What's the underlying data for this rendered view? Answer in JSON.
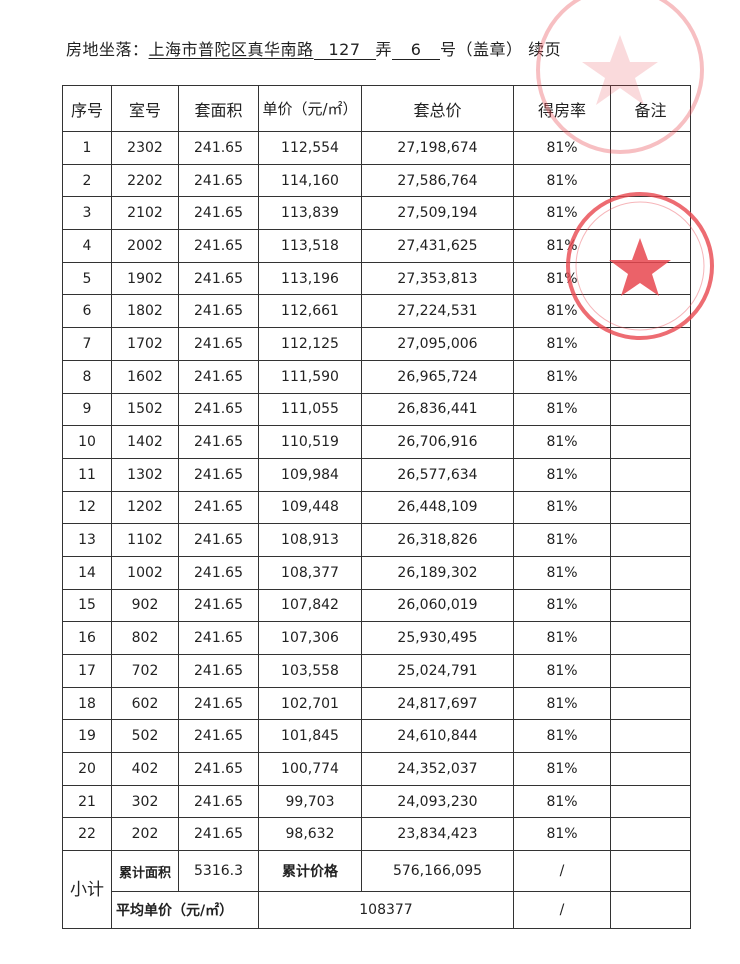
{
  "header": {
    "label": "房地坐落：",
    "address": "上海市普陀区真华南路",
    "lane_no": "127",
    "lane_label": "弄",
    "building_no": "6",
    "building_label": "号（盖章）",
    "continuation": "续页"
  },
  "columns": [
    "序号",
    "室号",
    "套面积",
    "单价（元/㎡）",
    "套总价",
    "得房率",
    "备注"
  ],
  "rows": [
    [
      "1",
      "2302",
      "241.65",
      "112,554",
      "27,198,674",
      "81%",
      ""
    ],
    [
      "2",
      "2202",
      "241.65",
      "114,160",
      "27,586,764",
      "81%",
      ""
    ],
    [
      "3",
      "2102",
      "241.65",
      "113,839",
      "27,509,194",
      "81%",
      ""
    ],
    [
      "4",
      "2002",
      "241.65",
      "113,518",
      "27,431,625",
      "81%",
      ""
    ],
    [
      "5",
      "1902",
      "241.65",
      "113,196",
      "27,353,813",
      "81%",
      ""
    ],
    [
      "6",
      "1802",
      "241.65",
      "112,661",
      "27,224,531",
      "81%",
      ""
    ],
    [
      "7",
      "1702",
      "241.65",
      "112,125",
      "27,095,006",
      "81%",
      ""
    ],
    [
      "8",
      "1602",
      "241.65",
      "111,590",
      "26,965,724",
      "81%",
      ""
    ],
    [
      "9",
      "1502",
      "241.65",
      "111,055",
      "26,836,441",
      "81%",
      ""
    ],
    [
      "10",
      "1402",
      "241.65",
      "110,519",
      "26,706,916",
      "81%",
      ""
    ],
    [
      "11",
      "1302",
      "241.65",
      "109,984",
      "26,577,634",
      "81%",
      ""
    ],
    [
      "12",
      "1202",
      "241.65",
      "109,448",
      "26,448,109",
      "81%",
      ""
    ],
    [
      "13",
      "1102",
      "241.65",
      "108,913",
      "26,318,826",
      "81%",
      ""
    ],
    [
      "14",
      "1002",
      "241.65",
      "108,377",
      "26,189,302",
      "81%",
      ""
    ],
    [
      "15",
      "902",
      "241.65",
      "107,842",
      "26,060,019",
      "81%",
      ""
    ],
    [
      "16",
      "802",
      "241.65",
      "107,306",
      "25,930,495",
      "81%",
      ""
    ],
    [
      "17",
      "702",
      "241.65",
      "103,558",
      "25,024,791",
      "81%",
      ""
    ],
    [
      "18",
      "602",
      "241.65",
      "102,701",
      "24,817,697",
      "81%",
      ""
    ],
    [
      "19",
      "502",
      "241.65",
      "101,845",
      "24,610,844",
      "81%",
      ""
    ],
    [
      "20",
      "402",
      "241.65",
      "100,774",
      "24,352,037",
      "81%",
      ""
    ],
    [
      "21",
      "302",
      "241.65",
      "99,703",
      "24,093,230",
      "81%",
      ""
    ],
    [
      "22",
      "202",
      "241.65",
      "98,632",
      "23,834,423",
      "81%",
      ""
    ]
  ],
  "subtotal": {
    "label": "小计",
    "area_label": "累计面积",
    "area_value": "5316.3",
    "price_label": "累计价格",
    "price_value": "576,166,095",
    "slash1": "/",
    "avg_label": "平均单价（元/㎡）",
    "avg_value": "108377",
    "slash2": "/"
  },
  "stamp_color": "#e8474f"
}
